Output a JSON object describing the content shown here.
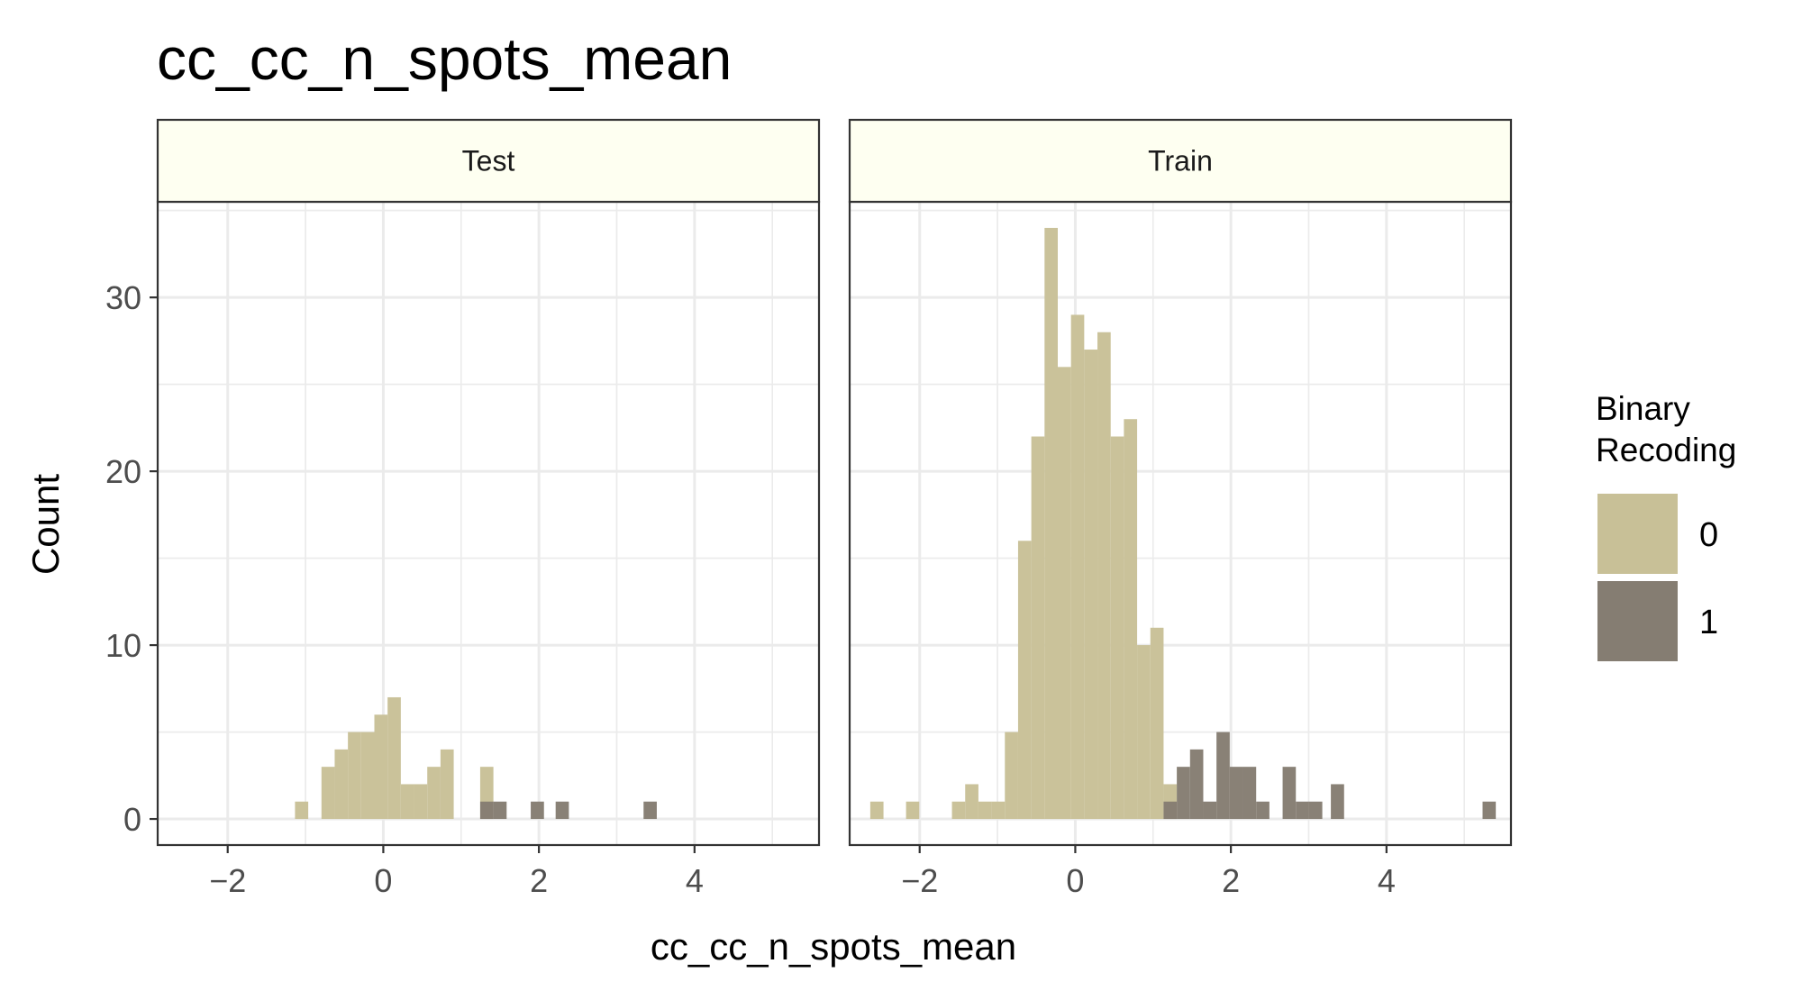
{
  "chart_data": {
    "type": "bar",
    "title": "cc_cc_n_spots_mean",
    "xlabel": "cc_cc_n_spots_mean",
    "ylabel": "Count",
    "xlim": [
      -2.9,
      5.6
    ],
    "ylim": [
      -1.5,
      35.5
    ],
    "x_ticks": [
      -2,
      0,
      2,
      4
    ],
    "y_ticks": [
      0,
      10,
      20,
      30
    ],
    "grid": true,
    "bin_width": 0.17,
    "legend": {
      "title": "Binary Recoding",
      "title_lines": [
        "Binary",
        "Recoding"
      ],
      "placement": "right",
      "entries": [
        {
          "label": "0",
          "color": "#c8c097"
        },
        {
          "label": "1",
          "color": "#857d72"
        }
      ]
    },
    "colors": {
      "fill_0": "#c8c097",
      "fill_1": "#857d72",
      "strip_fill": "#fefff1",
      "grid": "#ebebeb"
    },
    "panels": [
      {
        "label": "Test",
        "series": [
          {
            "group": "0",
            "bins": [
              {
                "x": -1.05,
                "count": 1
              },
              {
                "x": -0.71,
                "count": 3
              },
              {
                "x": -0.54,
                "count": 4
              },
              {
                "x": -0.37,
                "count": 5
              },
              {
                "x": -0.2,
                "count": 5
              },
              {
                "x": -0.03,
                "count": 6
              },
              {
                "x": 0.14,
                "count": 7
              },
              {
                "x": 0.31,
                "count": 2
              },
              {
                "x": 0.48,
                "count": 2
              },
              {
                "x": 0.65,
                "count": 3
              },
              {
                "x": 0.82,
                "count": 4
              },
              {
                "x": 1.33,
                "count": 3
              }
            ]
          },
          {
            "group": "1",
            "bins": [
              {
                "x": 1.33,
                "count": 1
              },
              {
                "x": 1.5,
                "count": 1
              },
              {
                "x": 1.98,
                "count": 1
              },
              {
                "x": 2.3,
                "count": 1
              },
              {
                "x": 3.43,
                "count": 1
              }
            ]
          }
        ]
      },
      {
        "label": "Train",
        "series": [
          {
            "group": "0",
            "bins": [
              {
                "x": -2.55,
                "count": 1
              },
              {
                "x": -2.09,
                "count": 1
              },
              {
                "x": -1.5,
                "count": 1
              },
              {
                "x": -1.33,
                "count": 2
              },
              {
                "x": -1.16,
                "count": 1
              },
              {
                "x": -0.99,
                "count": 1
              },
              {
                "x": -0.82,
                "count": 5
              },
              {
                "x": -0.65,
                "count": 16
              },
              {
                "x": -0.48,
                "count": 22
              },
              {
                "x": -0.31,
                "count": 34
              },
              {
                "x": -0.14,
                "count": 26
              },
              {
                "x": 0.03,
                "count": 29
              },
              {
                "x": 0.2,
                "count": 27
              },
              {
                "x": 0.37,
                "count": 28
              },
              {
                "x": 0.54,
                "count": 22
              },
              {
                "x": 0.71,
                "count": 23
              },
              {
                "x": 0.88,
                "count": 10
              },
              {
                "x": 1.05,
                "count": 11
              },
              {
                "x": 1.22,
                "count": 2
              }
            ]
          },
          {
            "group": "1",
            "bins": [
              {
                "x": 1.22,
                "count": 1
              },
              {
                "x": 1.39,
                "count": 3
              },
              {
                "x": 1.56,
                "count": 4
              },
              {
                "x": 1.73,
                "count": 1
              },
              {
                "x": 1.9,
                "count": 5
              },
              {
                "x": 2.07,
                "count": 3
              },
              {
                "x": 2.24,
                "count": 3
              },
              {
                "x": 2.41,
                "count": 1
              },
              {
                "x": 2.75,
                "count": 3
              },
              {
                "x": 2.92,
                "count": 1
              },
              {
                "x": 3.09,
                "count": 1
              },
              {
                "x": 3.37,
                "count": 2
              },
              {
                "x": 5.32,
                "count": 1
              }
            ]
          }
        ]
      }
    ]
  }
}
